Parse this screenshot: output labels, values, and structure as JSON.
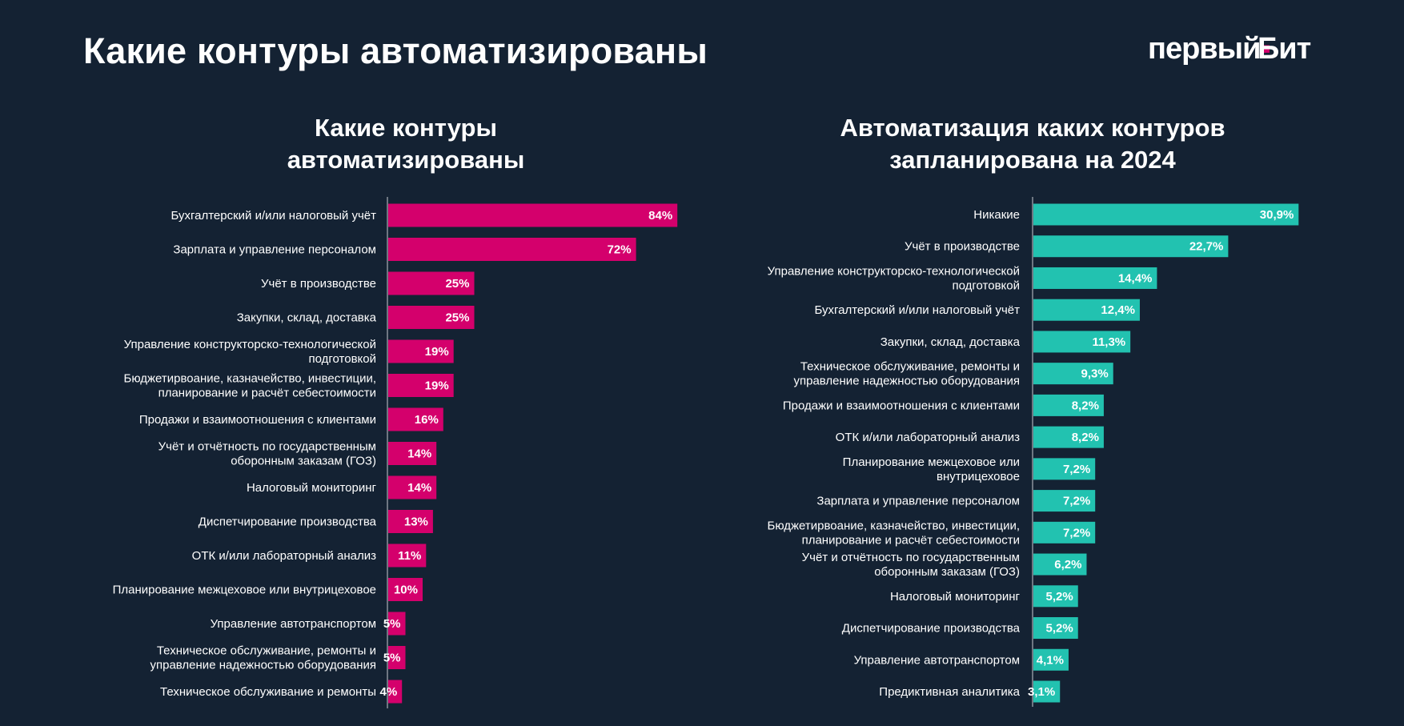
{
  "page": {
    "title": "Какие контуры автоматизированы",
    "logo_text_left": "первый",
    "logo_mark": "Б",
    "logo_text_right": "ит",
    "background_color": "#142233"
  },
  "chart_data": [
    {
      "type": "bar",
      "orientation": "horizontal",
      "title": "Какие контуры\nавтоматизированы",
      "color": "#d4006c",
      "value_format": "percent_integer",
      "xlim": [
        0,
        100
      ],
      "grid": false,
      "categories": [
        "Бухгалтерский и/или налоговый учёт",
        "Зарплата и управление персоналом",
        "Учёт в производстве",
        "Закупки, склад, доставка",
        "Управление конструкторско-технологической\nподготовкой",
        "Бюджетирвоание, казначейство, инвестиции,\nпланирование и расчёт себестоимости",
        "Продажи и взаимоотношения с клиентами",
        "Учёт и отчётность по государственным\nоборонным заказам (ГОЗ)",
        "Налоговый мониторинг",
        "Диспетчирование производства",
        "ОТК и/или лабораторный анализ",
        "Планирование межцеховое или внутрицеховое",
        "Управление автотранспортом",
        "Техническое обслуживание, ремонты и\nуправление надежностью оборудования",
        "Техническое обслуживание и ремонты"
      ],
      "values": [
        84,
        72,
        25,
        25,
        19,
        19,
        16,
        14,
        14,
        13,
        11,
        10,
        5,
        5,
        4
      ],
      "value_labels": [
        "84%",
        "72%",
        "25%",
        "25%",
        "19%",
        "19%",
        "16%",
        "14%",
        "14%",
        "13%",
        "11%",
        "10%",
        "5%",
        "5%",
        "4%"
      ]
    },
    {
      "type": "bar",
      "orientation": "horizontal",
      "title": "Автоматизация каких контуров\nзапланирована на 2024",
      "color": "#22c2b0",
      "value_format": "percent_one_decimal_comma",
      "xlim": [
        0,
        36
      ],
      "grid": false,
      "categories": [
        "Никакие",
        "Учёт в производстве",
        "Управление конструкторско-технологической\nподготовкой",
        "Бухгалтерский и/или налоговый учёт",
        "Закупки, склад, доставка",
        "Техническое обслуживание, ремонты и\nуправление надежностью оборудования",
        "Продажи и взаимоотношения с клиентами",
        "ОТК и/или лабораторный анализ",
        "Планирование межцеховое или\nвнутрицеховое",
        "Зарплата и управление персоналом",
        "Бюджетирвоание, казначейство, инвестиции,\nпланирование и расчёт себестоимости",
        "Учёт и отчётность по государственным\nоборонным заказам (ГОЗ)",
        "Налоговый мониторинг",
        "Диспетчирование производства",
        "Управление автотранспортом",
        "Предиктивная аналитика"
      ],
      "values": [
        30.9,
        22.7,
        14.4,
        12.4,
        11.3,
        9.3,
        8.2,
        8.2,
        7.2,
        7.2,
        7.2,
        6.2,
        5.2,
        5.2,
        4.1,
        3.1
      ],
      "value_labels": [
        "30,9%",
        "22,7%",
        "14,4%",
        "12,4%",
        "11,3%",
        "9,3%",
        "8,2%",
        "8,2%",
        "7,2%",
        "7,2%",
        "7,2%",
        "6,2%",
        "5,2%",
        "5,2%",
        "4,1%",
        "3,1%"
      ]
    }
  ]
}
